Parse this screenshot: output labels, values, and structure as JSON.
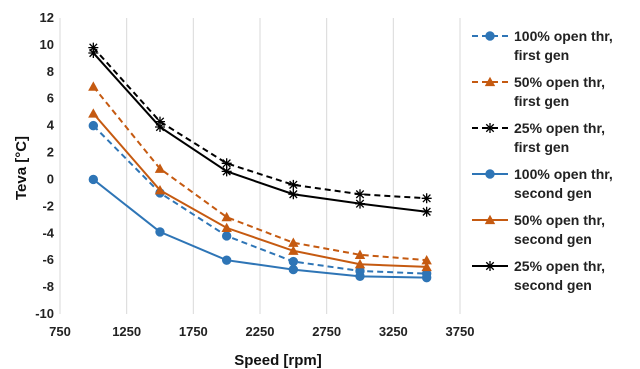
{
  "chart_data": {
    "type": "line",
    "title": "",
    "xlabel": "Speed [rpm]",
    "ylabel": "Teva [°C]",
    "xlim": [
      750,
      3750
    ],
    "ylim": [
      -10,
      12
    ],
    "xticks": [
      750,
      1250,
      1750,
      2250,
      2750,
      3250,
      3750
    ],
    "yticks": [
      -10,
      -8,
      -6,
      -4,
      -2,
      0,
      2,
      4,
      6,
      8,
      10,
      12
    ],
    "grid": "vertical",
    "legend_position": "right",
    "x": [
      1000,
      1500,
      2000,
      2500,
      3000,
      3500
    ],
    "series": [
      {
        "name": "100% open thr, first gen",
        "line1": "100% open thr,",
        "line2": "first gen",
        "color": "#2e75b6",
        "dash": "dashed",
        "marker": "circle",
        "values": [
          4.0,
          -1.0,
          -4.2,
          -6.1,
          -6.8,
          -7.0
        ]
      },
      {
        "name": "50% open thr, first gen",
        "line1": "50% open thr,",
        "line2": "first gen",
        "color": "#c55a11",
        "dash": "dashed",
        "marker": "triangle",
        "values": [
          6.9,
          0.8,
          -2.8,
          -4.7,
          -5.6,
          -6.0
        ]
      },
      {
        "name": "25% open thr, first gen",
        "line1": "25% open thr,",
        "line2": "first gen",
        "color": "#000000",
        "dash": "dashed",
        "marker": "star",
        "values": [
          9.8,
          4.3,
          1.2,
          -0.4,
          -1.1,
          -1.4
        ]
      },
      {
        "name": "100% open thr, second gen",
        "line1": "100% open thr,",
        "line2": "second gen",
        "color": "#2e75b6",
        "dash": "solid",
        "marker": "circle",
        "values": [
          0.0,
          -3.9,
          -6.0,
          -6.7,
          -7.2,
          -7.3
        ]
      },
      {
        "name": "50% open thr, second gen",
        "line1": "50% open thr,",
        "line2": "second gen",
        "color": "#c55a11",
        "dash": "solid",
        "marker": "triangle",
        "values": [
          4.9,
          -0.8,
          -3.6,
          -5.3,
          -6.3,
          -6.5
        ]
      },
      {
        "name": "25% open thr, second gen",
        "line1": "25% open thr,",
        "line2": "second gen",
        "color": "#000000",
        "dash": "solid",
        "marker": "star",
        "values": [
          9.4,
          3.9,
          0.6,
          -1.1,
          -1.8,
          -2.4
        ]
      }
    ]
  }
}
